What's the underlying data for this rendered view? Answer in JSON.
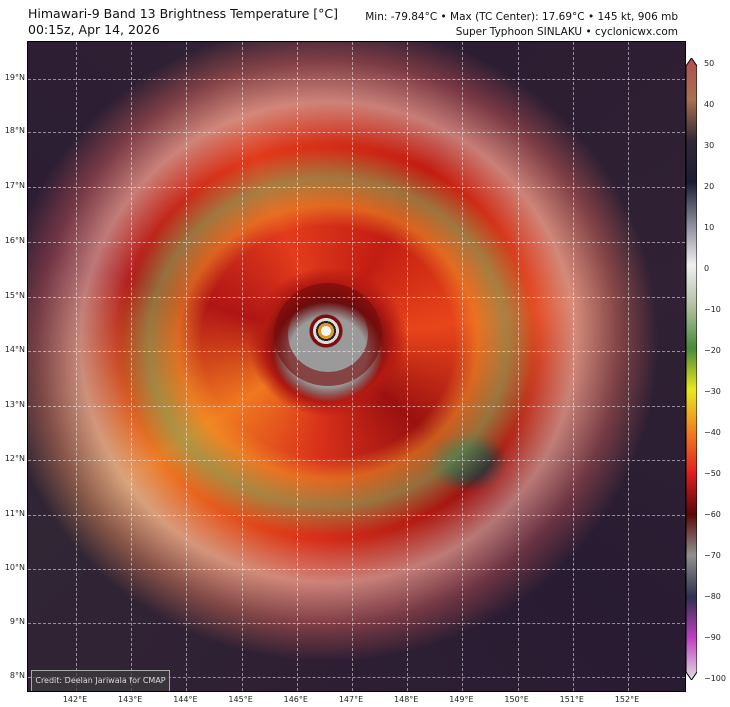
{
  "header": {
    "title": "Himawari-9 Band 13 Brightness Temperature [°C]",
    "datetime": "00:15z, Apr 14, 2026",
    "stats": "Min: -79.84°C • Max (TC Center): 17.69°C • 145 kt, 906 mb",
    "storm": "Super Typhoon SINLAKU • cyclonicwx.com"
  },
  "map": {
    "credit": "Credit: Deelan Jariwala for CMAP",
    "latitudes": [
      "19°N",
      "18°N",
      "17°N",
      "16°N",
      "15°N",
      "14°N",
      "13°N",
      "12°N",
      "11°N",
      "10°N",
      "9°N",
      "8°N"
    ],
    "longitudes": [
      "142°E",
      "143°E",
      "144°E",
      "145°E",
      "146°E",
      "147°E",
      "148°E",
      "149°E",
      "150°E",
      "151°E",
      "152°E"
    ]
  },
  "colorbar": {
    "ticks": [
      "50",
      "40",
      "30",
      "20",
      "10",
      "0",
      "−10",
      "−20",
      "−30",
      "−40",
      "−50",
      "−60",
      "−70",
      "−80",
      "−90",
      "−100"
    ],
    "colors": [
      "#b05050",
      "#a87050",
      "#302838",
      "#1c1d36",
      "#8a8a9a",
      "#f0f0f0",
      "#b0c0a0",
      "#4a8a3a",
      "#e8e820",
      "#f08020",
      "#e02020",
      "#5a0808",
      "#909090",
      "#303050",
      "#c040c0",
      "#e0e0e0"
    ]
  }
}
